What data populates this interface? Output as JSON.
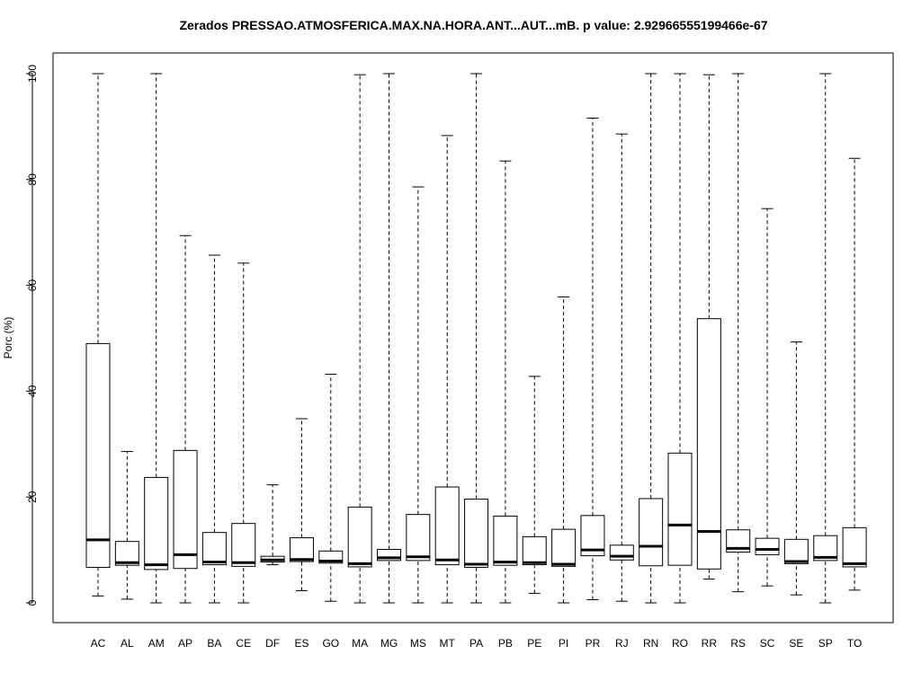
{
  "chart_data": {
    "type": "boxplot",
    "title": "Zerados PRESSAO.ATMOSFERICA.MAX.NA.HORA.ANT...AUT...mB. p value: 2.92966555199466e-67",
    "xlabel": "",
    "ylabel": "Porc (%)",
    "ylim": [
      0,
      100
    ],
    "yticks": [
      0,
      20,
      40,
      60,
      80,
      100
    ],
    "grid": false,
    "categories": [
      "AC",
      "AL",
      "AM",
      "AP",
      "BA",
      "CE",
      "DF",
      "ES",
      "GO",
      "MA",
      "MG",
      "MS",
      "MT",
      "PA",
      "PB",
      "PE",
      "PI",
      "PR",
      "RJ",
      "RN",
      "RO",
      "RR",
      "RS",
      "SC",
      "SE",
      "SP",
      "TO"
    ],
    "boxes": [
      {
        "min": 1.3,
        "q1": 6.7,
        "median": 11.9,
        "q3": 49.0,
        "max": 100.0
      },
      {
        "min": 0.7,
        "q1": 7.1,
        "median": 7.6,
        "q3": 11.6,
        "max": 28.6
      },
      {
        "min": 0.0,
        "q1": 6.3,
        "median": 7.2,
        "q3": 23.7,
        "max": 100.0
      },
      {
        "min": 0.0,
        "q1": 6.5,
        "median": 9.1,
        "q3": 28.8,
        "max": 69.4
      },
      {
        "min": 0.0,
        "q1": 7.2,
        "median": 7.7,
        "q3": 13.3,
        "max": 65.7
      },
      {
        "min": 0.0,
        "q1": 6.9,
        "median": 7.6,
        "q3": 15.0,
        "max": 64.2
      },
      {
        "min": 7.2,
        "q1": 7.7,
        "median": 8.1,
        "q3": 8.8,
        "max": 22.3
      },
      {
        "min": 2.3,
        "q1": 7.8,
        "median": 8.2,
        "q3": 12.3,
        "max": 34.8
      },
      {
        "min": 0.3,
        "q1": 7.5,
        "median": 7.9,
        "q3": 9.8,
        "max": 43.2
      },
      {
        "min": 0.0,
        "q1": 6.8,
        "median": 7.4,
        "q3": 18.1,
        "max": 99.8
      },
      {
        "min": 0.0,
        "q1": 8.0,
        "median": 8.5,
        "q3": 10.1,
        "max": 100.0
      },
      {
        "min": 0.0,
        "q1": 8.0,
        "median": 8.7,
        "q3": 16.7,
        "max": 78.6
      },
      {
        "min": 0.0,
        "q1": 7.2,
        "median": 8.1,
        "q3": 21.9,
        "max": 88.3
      },
      {
        "min": 0.0,
        "q1": 6.7,
        "median": 7.3,
        "q3": 19.6,
        "max": 100.0
      },
      {
        "min": 0.0,
        "q1": 7.1,
        "median": 7.7,
        "q3": 16.4,
        "max": 83.5
      },
      {
        "min": 1.8,
        "q1": 7.2,
        "median": 7.6,
        "q3": 12.5,
        "max": 42.8
      },
      {
        "min": 0.0,
        "q1": 6.9,
        "median": 7.3,
        "q3": 13.9,
        "max": 57.8
      },
      {
        "min": 0.6,
        "q1": 8.9,
        "median": 10.0,
        "q3": 16.5,
        "max": 91.6
      },
      {
        "min": 0.3,
        "q1": 8.1,
        "median": 8.8,
        "q3": 10.9,
        "max": 88.6
      },
      {
        "min": 0.0,
        "q1": 7.0,
        "median": 10.7,
        "q3": 19.7,
        "max": 100.0
      },
      {
        "min": 0.0,
        "q1": 7.1,
        "median": 14.7,
        "q3": 28.3,
        "max": 100.0
      },
      {
        "min": 4.5,
        "q1": 6.4,
        "median": 13.5,
        "q3": 53.7,
        "max": 99.8
      },
      {
        "min": 2.1,
        "q1": 9.6,
        "median": 10.3,
        "q3": 13.8,
        "max": 100.0
      },
      {
        "min": 3.2,
        "q1": 9.1,
        "median": 10.1,
        "q3": 12.2,
        "max": 74.5
      },
      {
        "min": 1.5,
        "q1": 7.4,
        "median": 7.8,
        "q3": 12.0,
        "max": 49.3
      },
      {
        "min": 0.0,
        "q1": 8.0,
        "median": 8.6,
        "q3": 12.7,
        "max": 100.0
      },
      {
        "min": 2.4,
        "q1": 6.8,
        "median": 7.4,
        "q3": 14.2,
        "max": 84.0
      }
    ]
  }
}
